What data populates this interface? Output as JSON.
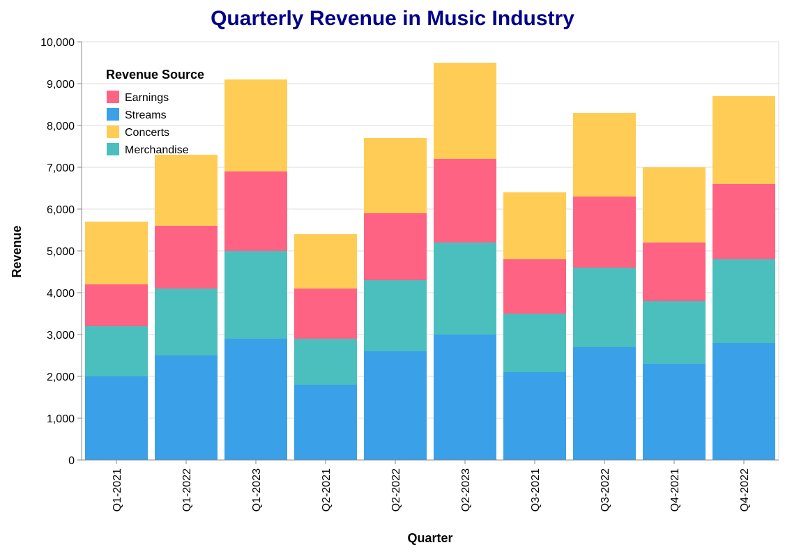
{
  "chart_data": {
    "type": "bar",
    "stacked": true,
    "title": "Quarterly Revenue in Music Industry",
    "xlabel": "Quarter",
    "ylabel": "Revenue",
    "ylim": [
      0,
      10000
    ],
    "yticks": [
      0,
      1000,
      2000,
      3000,
      4000,
      5000,
      6000,
      7000,
      8000,
      9000,
      10000
    ],
    "ytick_labels": [
      "0",
      "1,000",
      "2,000",
      "3,000",
      "4,000",
      "5,000",
      "6,000",
      "7,000",
      "8,000",
      "9,000",
      "10,000"
    ],
    "grid": true,
    "legend": {
      "title": "Revenue Source",
      "placement": "top-left",
      "entries": [
        "Earnings",
        "Streams",
        "Concerts",
        "Merchandise"
      ]
    },
    "categories": [
      "Q1-2021",
      "Q1-2022",
      "Q1-2023",
      "Q2-2021",
      "Q2-2022",
      "Q2-2023",
      "Q3-2021",
      "Q3-2022",
      "Q4-2021",
      "Q4-2022"
    ],
    "stack_order": [
      "Streams",
      "Merchandise",
      "Earnings",
      "Concerts"
    ],
    "series": [
      {
        "name": "Streams",
        "color": "#3aa0e8",
        "values": [
          2000,
          2500,
          2900,
          1800,
          2600,
          3000,
          2100,
          2700,
          2300,
          2800
        ]
      },
      {
        "name": "Merchandise",
        "color": "#4bbfbe",
        "values": [
          1200,
          1600,
          2100,
          1100,
          1700,
          2200,
          1400,
          1900,
          1500,
          2000
        ]
      },
      {
        "name": "Earnings",
        "color": "#ff6384",
        "values": [
          1000,
          1500,
          1900,
          1200,
          1600,
          2000,
          1300,
          1700,
          1400,
          1800
        ]
      },
      {
        "name": "Concerts",
        "color": "#ffcd56",
        "values": [
          1500,
          1700,
          2200,
          1300,
          1800,
          2300,
          1600,
          2000,
          1800,
          2100
        ]
      }
    ],
    "title_color": "#00008b"
  }
}
